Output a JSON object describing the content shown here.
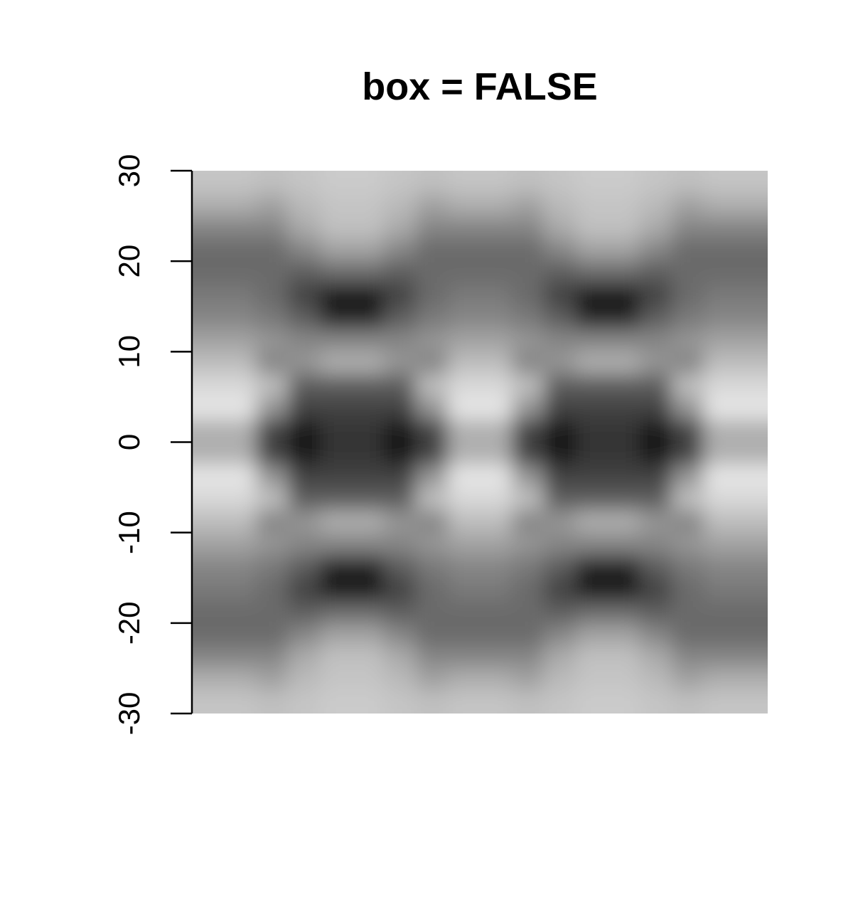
{
  "chart_data": {
    "type": "image",
    "title": "box = FALSE",
    "ylim": [
      -30,
      30
    ],
    "yticks": [
      -30,
      -20,
      -10,
      0,
      10,
      20,
      30
    ],
    "box": false,
    "values": [
      [
        78,
        78,
        76,
        78,
        80,
        80,
        78,
        76,
        78,
        78,
        76,
        78,
        80,
        80,
        78,
        76,
        78,
        78
      ],
      [
        70,
        70,
        65,
        74,
        78,
        78,
        74,
        65,
        70,
        70,
        65,
        74,
        78,
        78,
        74,
        65,
        70,
        70
      ],
      [
        55,
        55,
        55,
        68,
        76,
        76,
        68,
        55,
        55,
        55,
        55,
        68,
        76,
        76,
        68,
        55,
        55,
        55
      ],
      [
        45,
        45,
        45,
        55,
        65,
        65,
        55,
        45,
        45,
        45,
        45,
        55,
        65,
        65,
        55,
        45,
        45,
        45
      ],
      [
        45,
        45,
        45,
        40,
        45,
        45,
        40,
        45,
        45,
        45,
        45,
        40,
        45,
        45,
        40,
        45,
        45,
        45
      ],
      [
        50,
        50,
        45,
        30,
        15,
        15,
        30,
        45,
        50,
        50,
        45,
        30,
        15,
        15,
        30,
        45,
        50,
        50
      ],
      [
        55,
        55,
        50,
        40,
        20,
        20,
        40,
        50,
        55,
        55,
        50,
        40,
        20,
        20,
        40,
        50,
        55,
        55
      ],
      [
        65,
        65,
        60,
        55,
        55,
        55,
        55,
        60,
        65,
        65,
        60,
        55,
        55,
        55,
        55,
        60,
        65,
        65
      ],
      [
        75,
        75,
        55,
        60,
        70,
        70,
        60,
        55,
        75,
        75,
        55,
        60,
        70,
        70,
        60,
        55,
        75,
        75
      ],
      [
        85,
        85,
        75,
        40,
        40,
        40,
        40,
        75,
        85,
        85,
        75,
        40,
        40,
        40,
        40,
        75,
        85,
        85
      ],
      [
        90,
        90,
        60,
        30,
        30,
        30,
        30,
        60,
        90,
        90,
        60,
        30,
        30,
        30,
        30,
        60,
        90,
        90
      ],
      [
        70,
        70,
        30,
        15,
        25,
        25,
        15,
        30,
        70,
        70,
        30,
        15,
        25,
        25,
        15,
        30,
        70,
        70
      ],
      [
        70,
        70,
        30,
        15,
        25,
        25,
        15,
        30,
        70,
        70,
        30,
        15,
        25,
        25,
        15,
        30,
        70,
        70
      ],
      [
        90,
        90,
        60,
        30,
        30,
        30,
        30,
        60,
        90,
        90,
        60,
        30,
        30,
        30,
        30,
        60,
        90,
        90
      ],
      [
        85,
        85,
        75,
        40,
        40,
        40,
        40,
        75,
        85,
        85,
        75,
        40,
        40,
        40,
        40,
        75,
        85,
        85
      ],
      [
        75,
        75,
        55,
        60,
        70,
        70,
        60,
        55,
        75,
        75,
        55,
        60,
        70,
        70,
        60,
        55,
        75,
        75
      ],
      [
        65,
        65,
        60,
        55,
        55,
        55,
        55,
        60,
        65,
        65,
        60,
        55,
        55,
        55,
        55,
        60,
        65,
        65
      ],
      [
        55,
        55,
        50,
        40,
        20,
        20,
        40,
        50,
        55,
        55,
        50,
        40,
        20,
        20,
        40,
        50,
        55,
        55
      ],
      [
        50,
        50,
        45,
        30,
        15,
        15,
        30,
        45,
        50,
        50,
        45,
        30,
        15,
        15,
        30,
        45,
        50,
        50
      ],
      [
        45,
        45,
        45,
        40,
        45,
        45,
        40,
        45,
        45,
        45,
        45,
        40,
        45,
        45,
        40,
        45,
        45,
        45
      ],
      [
        45,
        45,
        45,
        55,
        65,
        65,
        55,
        45,
        45,
        45,
        45,
        55,
        65,
        65,
        55,
        45,
        45,
        45
      ],
      [
        55,
        55,
        55,
        68,
        76,
        76,
        68,
        55,
        55,
        55,
        55,
        68,
        76,
        76,
        68,
        55,
        55,
        55
      ],
      [
        70,
        70,
        65,
        74,
        78,
        78,
        74,
        65,
        70,
        70,
        65,
        74,
        78,
        78,
        74,
        65,
        70,
        70
      ],
      [
        78,
        78,
        76,
        78,
        80,
        80,
        78,
        76,
        78,
        78,
        76,
        78,
        80,
        80,
        78,
        76,
        78,
        78
      ]
    ]
  }
}
